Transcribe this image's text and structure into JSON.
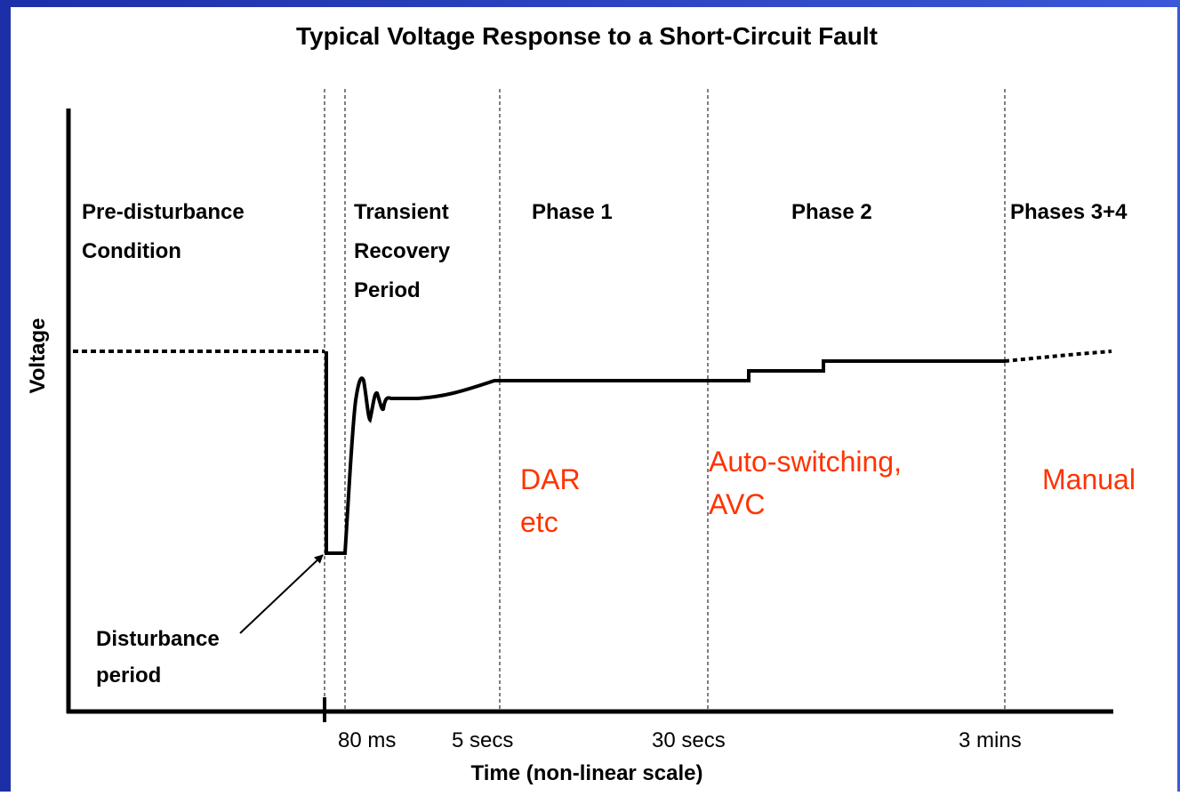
{
  "title": "Typical Voltage Response to a Short-Circuit Fault",
  "y_axis_label": "Voltage",
  "x_axis_label": "Time (non-linear scale)",
  "phases": [
    {
      "lines": [
        "Pre-disturbance",
        "Condition"
      ]
    },
    {
      "lines": [
        "Transient",
        "Recovery",
        "Period"
      ]
    },
    {
      "lines": [
        "Phase 1"
      ]
    },
    {
      "lines": [
        "Phase 2"
      ]
    },
    {
      "lines": [
        "Phases 3+4"
      ]
    }
  ],
  "actions": [
    {
      "lines": [
        "DAR",
        "etc"
      ]
    },
    {
      "lines": [
        "Auto-switching,",
        "AVC"
      ]
    },
    {
      "lines": [
        "Manual"
      ]
    }
  ],
  "time_labels": [
    "80 ms",
    "5 secs",
    "30 secs",
    "3 mins"
  ],
  "annotation": {
    "lines": [
      "Disturbance",
      "period"
    ]
  }
}
